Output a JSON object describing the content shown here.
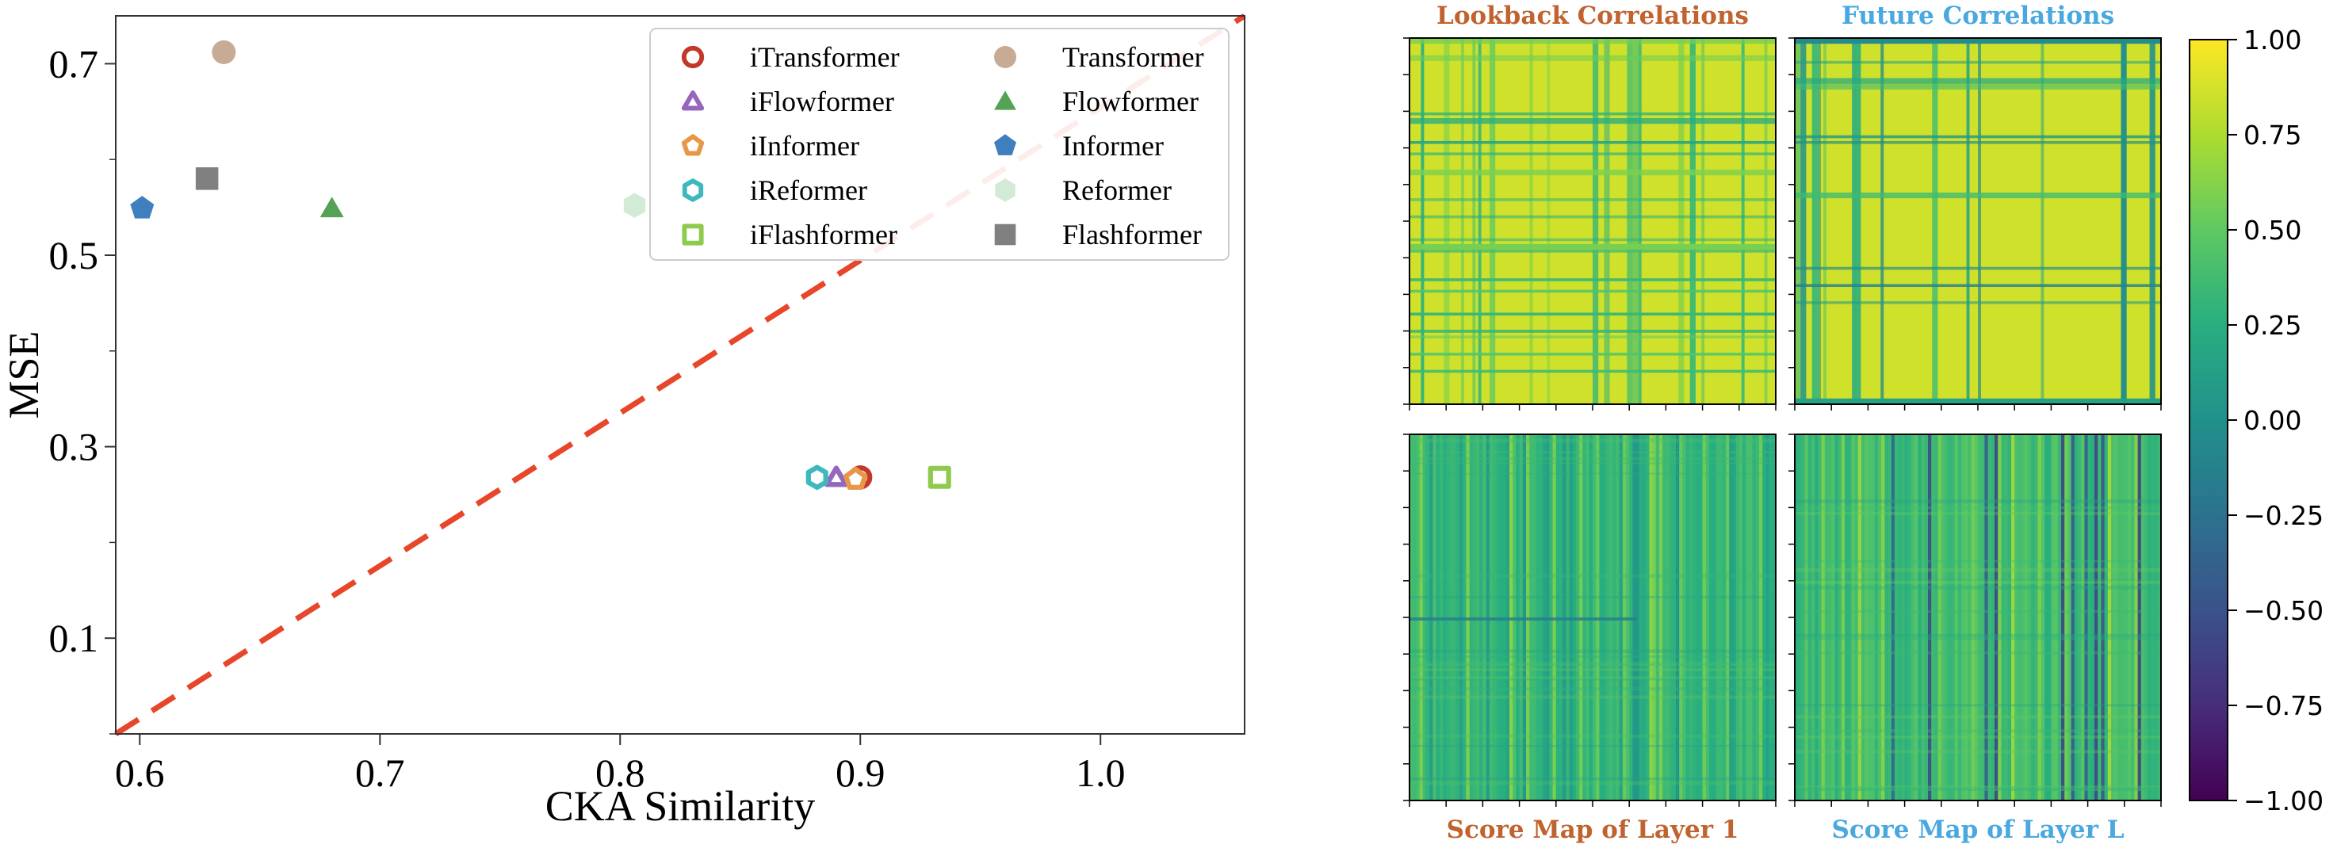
{
  "chart_data": [
    {
      "type": "scatter",
      "xlabel": "CKA Similarity",
      "ylabel": "MSE",
      "xlim": [
        0.59,
        1.06
      ],
      "ylim": [
        0.0,
        0.75
      ],
      "x_ticks": [
        0.6,
        0.7,
        0.8,
        0.9,
        1.0
      ],
      "x_tick_labels": [
        "0.6",
        "0.7",
        "0.8",
        "0.9",
        "1.0"
      ],
      "y_ticks": [
        0.1,
        0.3,
        0.5,
        0.7
      ],
      "y_tick_labels": [
        "0.1",
        "0.3",
        "0.5",
        "0.7"
      ],
      "reference_line": {
        "style": "dashed",
        "color": "#e8462a",
        "from": [
          0.59,
          0.0
        ],
        "to": [
          1.06,
          0.75
        ]
      },
      "legend_position": "top-right",
      "series": [
        {
          "name": "iTransformer",
          "x": 0.9,
          "y": 0.268,
          "marker": "circle",
          "hollow": true,
          "color": "#c0392b"
        },
        {
          "name": "Transformer",
          "x": 0.635,
          "y": 0.712,
          "marker": "circle",
          "hollow": false,
          "color": "#c8ab94"
        },
        {
          "name": "iFlowformer",
          "x": 0.89,
          "y": 0.268,
          "marker": "triangle",
          "hollow": true,
          "color": "#9467bd"
        },
        {
          "name": "Flowformer",
          "x": 0.68,
          "y": 0.549,
          "marker": "triangle",
          "hollow": false,
          "color": "#55a155"
        },
        {
          "name": "iInformer",
          "x": 0.898,
          "y": 0.266,
          "marker": "pentagon",
          "hollow": true,
          "color": "#e8974a"
        },
        {
          "name": "Informer",
          "x": 0.601,
          "y": 0.549,
          "marker": "pentagon",
          "hollow": false,
          "color": "#3f7fbf"
        },
        {
          "name": "iReformer",
          "x": 0.882,
          "y": 0.268,
          "marker": "hexagon",
          "hollow": true,
          "color": "#3fb8bd"
        },
        {
          "name": "Reformer",
          "x": 0.806,
          "y": 0.552,
          "marker": "hexagon",
          "hollow": false,
          "color": "#d2ebd6"
        },
        {
          "name": "iFlashformer",
          "x": 0.933,
          "y": 0.268,
          "marker": "square",
          "hollow": true,
          "color": "#8fca4e"
        },
        {
          "name": "Flashformer",
          "x": 0.628,
          "y": 0.58,
          "marker": "square",
          "hollow": false,
          "color": "#808080"
        }
      ]
    },
    {
      "type": "heatmap",
      "panels": [
        {
          "title": "Lookback Correlations",
          "title_color": "#c0632f",
          "pattern": "lookback"
        },
        {
          "title": "Future Correlations",
          "title_color": "#4aa8e0",
          "pattern": "future"
        },
        {
          "title": "Score Map of Layer 1",
          "title_color": "#c0632f",
          "pattern": "layer1"
        },
        {
          "title": "Score Map of Layer L",
          "title_color": "#4aa8e0",
          "pattern": "layerL"
        }
      ],
      "colorbar": {
        "colormap": "viridis",
        "range": [
          -1.0,
          1.0
        ],
        "ticks": [
          1.0,
          0.75,
          0.5,
          0.25,
          0.0,
          -0.25,
          -0.5,
          -0.75,
          -1.0
        ],
        "tick_labels": [
          "1.00",
          "0.75",
          "0.50",
          "0.25",
          "0.00",
          "−0.25",
          "−0.50",
          "−0.75",
          "−1.00"
        ]
      }
    }
  ]
}
